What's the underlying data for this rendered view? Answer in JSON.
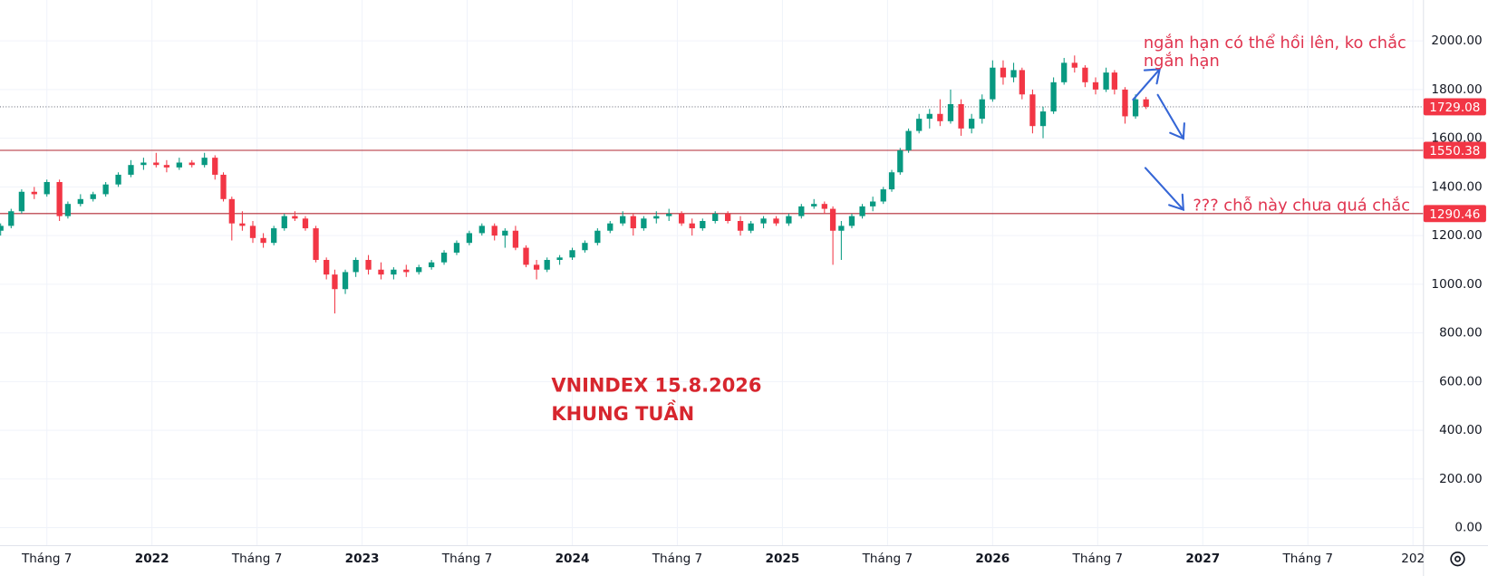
{
  "chart_data": {
    "type": "candlestick",
    "up_color": "#089981",
    "down_color": "#f23645",
    "grid": true,
    "xlim": [
      2021.277,
      2028.05
    ],
    "ylim": [
      -74,
      2168
    ],
    "xticks": [
      {
        "value": 2021.5,
        "label": "Tháng 7"
      },
      2022,
      {
        "value": 2022.5,
        "label": "Tháng 7"
      },
      2023,
      {
        "value": 2023.5,
        "label": "Tháng 7"
      },
      2024,
      {
        "value": 2024.5,
        "label": "Tháng 7"
      },
      2025,
      {
        "value": 2025.5,
        "label": "Tháng 7"
      },
      2026,
      {
        "value": 2026.5,
        "label": "Tháng 7"
      },
      2027,
      {
        "value": 2027.5,
        "label": "Tháng 7"
      },
      {
        "value": 2028,
        "label": "202"
      }
    ],
    "yticks": [
      {
        "value": 0,
        "label": "0.00"
      },
      {
        "value": 200,
        "label": "200.00"
      },
      {
        "value": 400,
        "label": "400.00"
      },
      {
        "value": 600,
        "label": "600.00"
      },
      {
        "value": 800,
        "label": "800.00"
      },
      {
        "value": 1000,
        "label": "1000.00"
      },
      {
        "value": 1200,
        "label": "1200.00"
      },
      {
        "value": 1400,
        "label": "1400.00"
      },
      {
        "value": 1600,
        "label": "1600.00"
      },
      {
        "value": 1800,
        "label": "1800.00"
      },
      {
        "value": 2000,
        "label": "2000.00"
      }
    ],
    "price_lines": [
      {
        "value": 1729.08,
        "color": "#787b86",
        "style": "dotted",
        "label_color": "#f23645"
      },
      {
        "value": 1550.38,
        "color": "#b22833",
        "style": "solid",
        "label_color": "#f23645"
      },
      {
        "value": 1290.46,
        "color": "#b22833",
        "style": "solid",
        "label_color": "#f23645"
      }
    ],
    "annotations": [
      "ngắn hạn có thể hồi lên, ko chắc",
      "ngắn hạn",
      "??? chỗ này chưa quá chắc",
      "VNINDEX 15.8.2026",
      "KHUNG TUẦN"
    ],
    "x": [
      2021.28,
      2021.33,
      2021.38,
      2021.44,
      2021.5,
      2021.56,
      2021.6,
      2021.66,
      2021.72,
      2021.78,
      2021.84,
      2021.9,
      2021.96,
      2022.02,
      2022.07,
      2022.13,
      2022.19,
      2022.25,
      2022.3,
      2022.34,
      2022.38,
      2022.43,
      2022.48,
      2022.53,
      2022.58,
      2022.63,
      2022.68,
      2022.73,
      2022.78,
      2022.83,
      2022.87,
      2022.92,
      2022.97,
      2023.03,
      2023.09,
      2023.15,
      2023.21,
      2023.27,
      2023.33,
      2023.39,
      2023.45,
      2023.51,
      2023.57,
      2023.63,
      2023.68,
      2023.73,
      2023.78,
      2023.83,
      2023.88,
      2023.94,
      2024.0,
      2024.06,
      2024.12,
      2024.18,
      2024.24,
      2024.29,
      2024.34,
      2024.4,
      2024.46,
      2024.52,
      2024.57,
      2024.62,
      2024.68,
      2024.74,
      2024.8,
      2024.85,
      2024.91,
      2024.97,
      2025.03,
      2025.09,
      2025.15,
      2025.2,
      2025.24,
      2025.28,
      2025.33,
      2025.38,
      2025.43,
      2025.48,
      2025.52,
      2025.56,
      2025.6,
      2025.65,
      2025.7,
      2025.75,
      2025.8,
      2025.85,
      2025.9,
      2025.95,
      2026.0,
      2026.05,
      2026.1,
      2026.14,
      2026.19,
      2026.24,
      2026.29,
      2026.34,
      2026.39,
      2026.44,
      2026.49,
      2026.54,
      2026.58,
      2026.63,
      2026.68,
      2026.73
    ],
    "open": [
      1220,
      1240,
      1300,
      1380,
      1370,
      1420,
      1280,
      1330,
      1350,
      1370,
      1410,
      1450,
      1490,
      1500,
      1490,
      1480,
      1500,
      1490,
      1520,
      1450,
      1350,
      1250,
      1240,
      1190,
      1170,
      1230,
      1280,
      1270,
      1230,
      1100,
      1040,
      980,
      1050,
      1100,
      1060,
      1040,
      1060,
      1050,
      1070,
      1090,
      1130,
      1170,
      1210,
      1240,
      1200,
      1220,
      1150,
      1080,
      1060,
      1100,
      1110,
      1140,
      1170,
      1220,
      1250,
      1280,
      1230,
      1270,
      1280,
      1290,
      1250,
      1230,
      1260,
      1290,
      1260,
      1220,
      1250,
      1270,
      1250,
      1280,
      1320,
      1330,
      1310,
      1220,
      1240,
      1280,
      1320,
      1340,
      1390,
      1460,
      1550,
      1630,
      1680,
      1700,
      1670,
      1740,
      1640,
      1680,
      1760,
      1890,
      1850,
      1880,
      1780,
      1650,
      1710,
      1830,
      1910,
      1890,
      1830,
      1800,
      1870,
      1800,
      1690,
      1760
    ],
    "high": [
      1250,
      1310,
      1390,
      1400,
      1430,
      1430,
      1340,
      1370,
      1380,
      1420,
      1460,
      1510,
      1520,
      1540,
      1510,
      1520,
      1510,
      1540,
      1530,
      1460,
      1360,
      1300,
      1260,
      1210,
      1240,
      1290,
      1300,
      1280,
      1240,
      1110,
      1060,
      1060,
      1110,
      1120,
      1090,
      1070,
      1080,
      1080,
      1100,
      1140,
      1180,
      1220,
      1250,
      1250,
      1230,
      1240,
      1160,
      1100,
      1110,
      1120,
      1150,
      1180,
      1230,
      1260,
      1300,
      1290,
      1280,
      1300,
      1310,
      1300,
      1270,
      1270,
      1300,
      1300,
      1280,
      1260,
      1280,
      1280,
      1290,
      1330,
      1350,
      1340,
      1320,
      1260,
      1290,
      1330,
      1360,
      1400,
      1470,
      1560,
      1640,
      1700,
      1720,
      1760,
      1800,
      1760,
      1700,
      1780,
      1920,
      1920,
      1910,
      1890,
      1800,
      1730,
      1850,
      1930,
      1940,
      1900,
      1850,
      1890,
      1880,
      1810,
      1780,
      1770
    ],
    "low": [
      1200,
      1230,
      1290,
      1350,
      1360,
      1260,
      1270,
      1320,
      1340,
      1360,
      1400,
      1440,
      1470,
      1480,
      1460,
      1470,
      1480,
      1480,
      1430,
      1340,
      1180,
      1220,
      1170,
      1150,
      1160,
      1220,
      1260,
      1220,
      1090,
      1020,
      880,
      960,
      1030,
      1040,
      1020,
      1020,
      1030,
      1040,
      1060,
      1080,
      1120,
      1160,
      1200,
      1180,
      1150,
      1140,
      1070,
      1020,
      1050,
      1080,
      1100,
      1130,
      1160,
      1210,
      1240,
      1200,
      1220,
      1250,
      1260,
      1240,
      1200,
      1220,
      1250,
      1250,
      1200,
      1210,
      1230,
      1240,
      1240,
      1270,
      1310,
      1290,
      1080,
      1100,
      1230,
      1270,
      1300,
      1330,
      1380,
      1450,
      1540,
      1620,
      1640,
      1650,
      1660,
      1610,
      1620,
      1660,
      1750,
      1820,
      1830,
      1760,
      1620,
      1600,
      1700,
      1820,
      1870,
      1810,
      1780,
      1790,
      1780,
      1660,
      1680,
      1720
    ],
    "close": [
      1240,
      1300,
      1380,
      1370,
      1420,
      1280,
      1330,
      1350,
      1370,
      1410,
      1450,
      1490,
      1500,
      1490,
      1480,
      1500,
      1490,
      1520,
      1450,
      1350,
      1250,
      1240,
      1190,
      1170,
      1230,
      1280,
      1270,
      1230,
      1100,
      1040,
      980,
      1050,
      1100,
      1060,
      1040,
      1060,
      1050,
      1070,
      1090,
      1130,
      1170,
      1210,
      1240,
      1200,
      1220,
      1150,
      1080,
      1060,
      1100,
      1110,
      1140,
      1170,
      1220,
      1250,
      1280,
      1230,
      1270,
      1280,
      1290,
      1250,
      1230,
      1260,
      1290,
      1260,
      1220,
      1250,
      1270,
      1250,
      1280,
      1320,
      1330,
      1310,
      1220,
      1240,
      1280,
      1320,
      1340,
      1390,
      1460,
      1550,
      1630,
      1680,
      1700,
      1670,
      1740,
      1640,
      1680,
      1760,
      1890,
      1850,
      1880,
      1780,
      1650,
      1710,
      1830,
      1910,
      1890,
      1830,
      1800,
      1870,
      1800,
      1690,
      1760,
      1729.08
    ]
  }
}
